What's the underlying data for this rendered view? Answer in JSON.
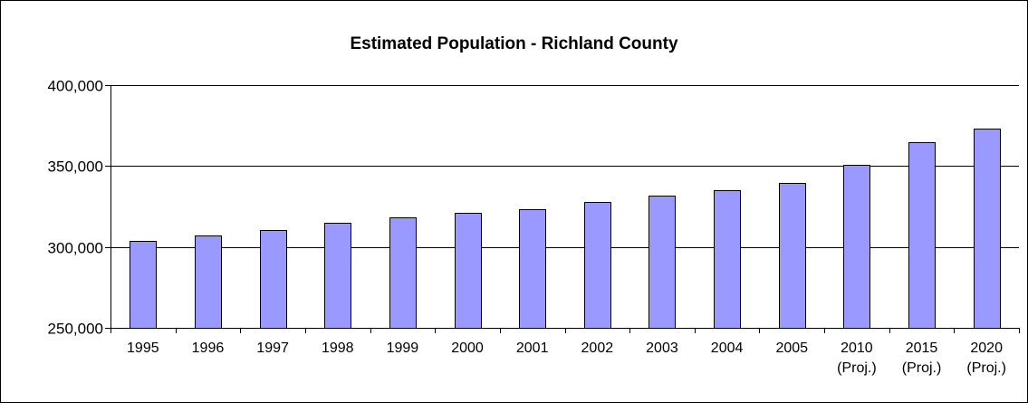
{
  "chart_data": {
    "type": "bar",
    "title": "Estimated Population - Richland County",
    "xlabel": "",
    "ylabel": "",
    "ylim": [
      250000,
      400000
    ],
    "yticks": [
      250000,
      300000,
      350000,
      400000
    ],
    "ytick_labels": [
      "250,000",
      "300,000",
      "350,000",
      "400,000"
    ],
    "grid": true,
    "categories": [
      [
        "1995"
      ],
      [
        "1996"
      ],
      [
        "1997"
      ],
      [
        "1998"
      ],
      [
        "1999"
      ],
      [
        "2000"
      ],
      [
        "2001"
      ],
      [
        "2002"
      ],
      [
        "2003"
      ],
      [
        "2004"
      ],
      [
        "2005"
      ],
      [
        "2010",
        "(Proj.)"
      ],
      [
        "2015",
        "(Proj.)"
      ],
      [
        "2020",
        "(Proj.)"
      ]
    ],
    "values": [
      303500,
      307000,
      310500,
      315000,
      318500,
      321000,
      323500,
      328000,
      331500,
      335000,
      339500,
      350500,
      364500,
      373000
    ],
    "colors": {
      "bar_fill": "#9999ff",
      "bar_stroke": "#000000",
      "grid": "#000000",
      "axis": "#000000"
    }
  }
}
